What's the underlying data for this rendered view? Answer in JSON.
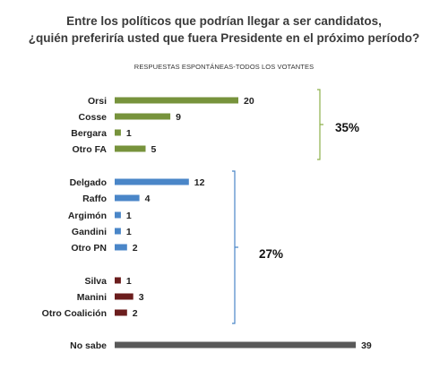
{
  "chart_data": {
    "type": "bar",
    "orientation": "horizontal",
    "title_lines": [
      "Entre los políticos que podrían llegar a ser candidatos,",
      "¿quién preferiría usted que fuera Presidente en el próximo período?"
    ],
    "subtitle": "RESPUESTAS ESPONTÁNEAS-TODOS LOS VOTANTES",
    "categories": [
      "Orsi",
      "Cosse",
      "Bergara",
      "Otro FA",
      "Delgado",
      "Raffo",
      "Argimón",
      "Gandini",
      "Otro PN",
      "Silva",
      "Manini",
      "Otro Coalición",
      "No sabe"
    ],
    "values": [
      20,
      9,
      1,
      5,
      12,
      4,
      1,
      1,
      2,
      1,
      3,
      2,
      39
    ],
    "bar_colors": [
      "#77933c",
      "#77933c",
      "#77933c",
      "#77933c",
      "#4a86c8",
      "#4a86c8",
      "#4a86c8",
      "#4a86c8",
      "#4a86c8",
      "#6b1d1d",
      "#6b1d1d",
      "#6b1d1d",
      "#595959"
    ],
    "groups": [
      {
        "label": "35%",
        "color": "#8db04b"
      },
      {
        "label": "27%",
        "color": "#4a86c8"
      }
    ],
    "xlim": [
      0,
      39
    ],
    "grid": false,
    "legend": "none"
  }
}
